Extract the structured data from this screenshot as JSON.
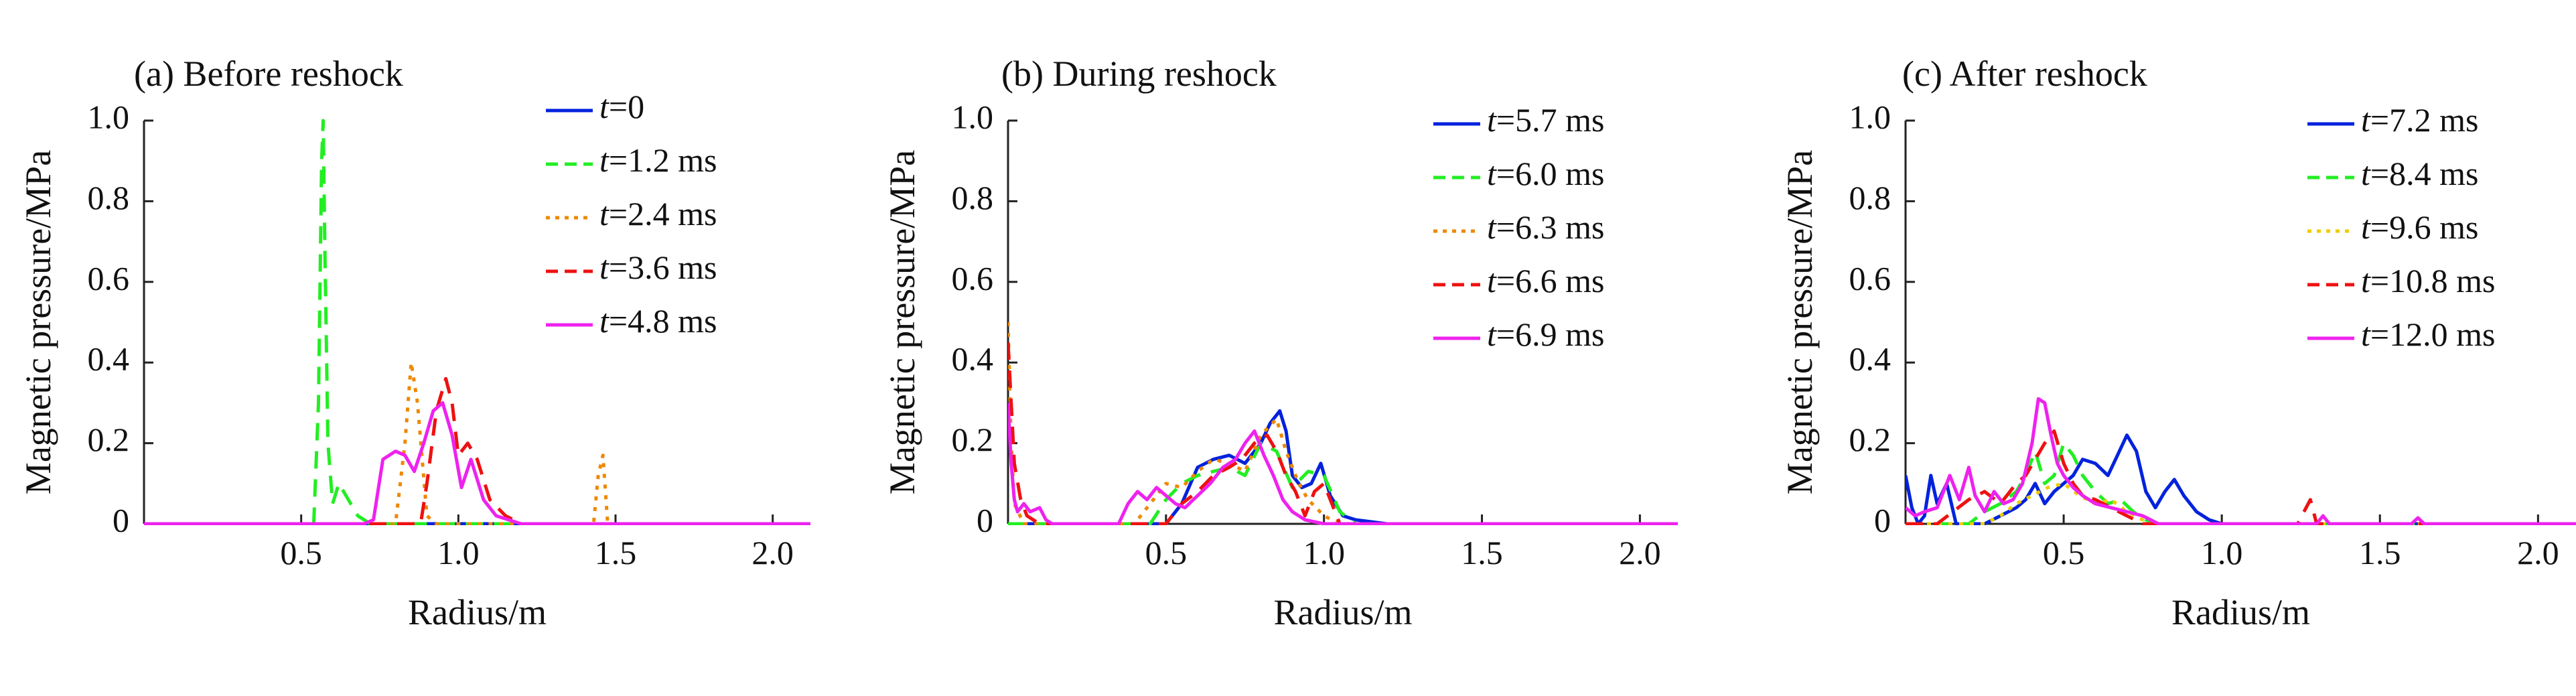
{
  "chart_data": [
    {
      "type": "line",
      "title": "(a) Before reshock",
      "xlabel": "Radius/m",
      "ylabel": "Magnetic pressure/MPa",
      "xlim": [
        0,
        2.12
      ],
      "ylim": [
        0,
        1.0
      ],
      "xticks": [
        "0.5",
        "1.0",
        "1.5",
        "2.0"
      ],
      "yticks": [
        "0",
        "0.2",
        "0.4",
        "0.6",
        "0.8",
        "1.0"
      ],
      "grid": false,
      "legend_position": "top-right",
      "series": [
        {
          "name": "t=0",
          "color": "#0022dd",
          "dash": "solid",
          "x": [
            0.0,
            2.12
          ],
          "y": [
            0.0,
            0.0
          ]
        },
        {
          "name": "t=1.2 ms",
          "color": "#22ee22",
          "dash": "dashed",
          "x": [
            0.0,
            0.54,
            0.555,
            0.565,
            0.57,
            0.575,
            0.585,
            0.6,
            0.62,
            0.65,
            0.68,
            0.72,
            2.12
          ],
          "y": [
            0.0,
            0.0,
            0.3,
            0.9,
            1.0,
            0.7,
            0.2,
            0.05,
            0.1,
            0.06,
            0.02,
            0.0,
            0.0
          ]
        },
        {
          "name": "t=2.4 ms",
          "color": "#ee8800",
          "dash": "dotted",
          "x": [
            0.0,
            0.8,
            0.83,
            0.85,
            0.87,
            0.9,
            0.93,
            0.96,
            1.0,
            1.43,
            1.445,
            1.46,
            1.475,
            2.12
          ],
          "y": [
            0.0,
            0.0,
            0.2,
            0.4,
            0.3,
            0.02,
            0.0,
            0.0,
            0.0,
            0.0,
            0.12,
            0.17,
            0.0,
            0.0
          ]
        },
        {
          "name": "t=3.6 ms",
          "color": "#ee1111",
          "dash": "dashed",
          "x": [
            0.0,
            0.88,
            0.9,
            0.93,
            0.96,
            0.98,
            1.0,
            1.03,
            1.06,
            1.1,
            1.15,
            1.2,
            2.12
          ],
          "y": [
            0.0,
            0.0,
            0.1,
            0.28,
            0.36,
            0.3,
            0.17,
            0.2,
            0.16,
            0.06,
            0.02,
            0.0,
            0.0
          ]
        },
        {
          "name": "t=4.8 ms",
          "color": "#ee22ee",
          "dash": "solid",
          "x": [
            0.0,
            0.7,
            0.73,
            0.76,
            0.8,
            0.83,
            0.86,
            0.89,
            0.92,
            0.95,
            0.98,
            1.01,
            1.04,
            1.08,
            1.12,
            1.2,
            2.12
          ],
          "y": [
            0.0,
            0.0,
            0.01,
            0.16,
            0.18,
            0.17,
            0.13,
            0.2,
            0.28,
            0.3,
            0.22,
            0.09,
            0.16,
            0.06,
            0.02,
            0.0,
            0.0
          ]
        }
      ]
    },
    {
      "type": "line",
      "title": "(b) During reshock",
      "xlabel": "Radius/m",
      "ylabel": "Magnetic pressure/MPa",
      "xlim": [
        0,
        2.12
      ],
      "ylim": [
        0,
        1.0
      ],
      "xticks": [
        "0.5",
        "1.0",
        "1.5",
        "2.0"
      ],
      "yticks": [
        "0",
        "0.2",
        "0.4",
        "0.6",
        "0.8",
        "1.0"
      ],
      "grid": false,
      "legend_position": "top-right",
      "series": [
        {
          "name": "t=5.7 ms",
          "color": "#0022dd",
          "dash": "solid",
          "x": [
            0.0,
            0.5,
            0.55,
            0.6,
            0.65,
            0.7,
            0.75,
            0.8,
            0.83,
            0.86,
            0.88,
            0.9,
            0.93,
            0.96,
            0.99,
            1.02,
            1.06,
            1.1,
            1.2,
            2.12
          ],
          "y": [
            0.0,
            0.0,
            0.05,
            0.14,
            0.16,
            0.17,
            0.15,
            0.2,
            0.25,
            0.28,
            0.23,
            0.12,
            0.09,
            0.1,
            0.15,
            0.07,
            0.02,
            0.01,
            0.0,
            0.0
          ]
        },
        {
          "name": "t=6.0 ms",
          "color": "#22ee22",
          "dash": "dashed",
          "x": [
            0.0,
            0.45,
            0.5,
            0.55,
            0.6,
            0.65,
            0.7,
            0.75,
            0.8,
            0.85,
            0.9,
            0.95,
            1.0,
            1.05,
            1.1,
            2.12
          ],
          "y": [
            0.0,
            0.0,
            0.06,
            0.1,
            0.12,
            0.13,
            0.14,
            0.12,
            0.2,
            0.18,
            0.09,
            0.13,
            0.12,
            0.03,
            0.0,
            0.0
          ]
        },
        {
          "name": "t=6.3 ms",
          "color": "#ee8800",
          "dash": "dotted",
          "x": [
            0.0,
            0.01,
            0.02,
            0.05,
            0.4,
            0.45,
            0.5,
            0.55,
            0.6,
            0.65,
            0.7,
            0.75,
            0.8,
            0.85,
            0.88,
            0.92,
            0.95,
            1.0,
            1.05,
            2.12
          ],
          "y": [
            0.5,
            0.2,
            0.05,
            0.0,
            0.0,
            0.05,
            0.1,
            0.09,
            0.13,
            0.16,
            0.15,
            0.13,
            0.22,
            0.26,
            0.18,
            0.1,
            0.06,
            0.02,
            0.0,
            0.0
          ]
        },
        {
          "name": "t=6.6 ms",
          "color": "#ee1111",
          "dash": "dashed",
          "x": [
            0.0,
            0.01,
            0.02,
            0.04,
            0.06,
            0.1,
            0.5,
            0.55,
            0.6,
            0.65,
            0.7,
            0.74,
            0.78,
            0.82,
            0.85,
            0.88,
            0.91,
            0.94,
            0.97,
            1.0,
            1.05,
            2.12
          ],
          "y": [
            0.45,
            0.3,
            0.15,
            0.06,
            0.02,
            0.0,
            0.0,
            0.05,
            0.08,
            0.12,
            0.14,
            0.16,
            0.2,
            0.22,
            0.18,
            0.12,
            0.08,
            0.02,
            0.08,
            0.1,
            0.0,
            0.0
          ]
        },
        {
          "name": "t=6.9 ms",
          "color": "#ee22ee",
          "dash": "solid",
          "x": [
            0.0,
            0.01,
            0.02,
            0.03,
            0.05,
            0.07,
            0.1,
            0.12,
            0.14,
            0.35,
            0.38,
            0.41,
            0.44,
            0.47,
            0.5,
            0.53,
            0.56,
            0.6,
            0.64,
            0.68,
            0.72,
            0.75,
            0.78,
            0.81,
            0.84,
            0.87,
            0.9,
            0.94,
            1.0,
            2.12
          ],
          "y": [
            0.3,
            0.15,
            0.06,
            0.03,
            0.05,
            0.03,
            0.04,
            0.01,
            0.0,
            0.0,
            0.05,
            0.08,
            0.06,
            0.09,
            0.07,
            0.05,
            0.04,
            0.07,
            0.1,
            0.14,
            0.16,
            0.2,
            0.23,
            0.17,
            0.12,
            0.06,
            0.03,
            0.01,
            0.0,
            0.0
          ]
        }
      ]
    },
    {
      "type": "line",
      "title": "(c) After reshock",
      "xlabel": "Radius/m",
      "ylabel": "Magnetic pressure/MPa",
      "xlim": [
        0,
        2.12
      ],
      "ylim": [
        0,
        1.0
      ],
      "xticks": [
        "0.5",
        "1.0",
        "1.5",
        "2.0"
      ],
      "yticks": [
        "0",
        "0.2",
        "0.4",
        "0.6",
        "0.8",
        "1.0"
      ],
      "grid": false,
      "legend_position": "top-right",
      "series": [
        {
          "name": "t=7.2 ms",
          "color": "#0022dd",
          "dash": "solid",
          "x": [
            0.0,
            0.02,
            0.04,
            0.06,
            0.08,
            0.1,
            0.13,
            0.16,
            0.25,
            0.3,
            0.35,
            0.38,
            0.41,
            0.44,
            0.47,
            0.5,
            0.53,
            0.56,
            0.6,
            0.64,
            0.67,
            0.7,
            0.73,
            0.76,
            0.79,
            0.82,
            0.85,
            0.88,
            0.92,
            0.96,
            1.0,
            2.12
          ],
          "y": [
            0.12,
            0.04,
            0.0,
            0.02,
            0.12,
            0.05,
            0.1,
            0.0,
            0.0,
            0.02,
            0.04,
            0.06,
            0.1,
            0.05,
            0.08,
            0.1,
            0.12,
            0.16,
            0.15,
            0.12,
            0.17,
            0.22,
            0.18,
            0.08,
            0.04,
            0.08,
            0.11,
            0.07,
            0.03,
            0.01,
            0.0,
            0.0
          ]
        },
        {
          "name": "t=8.4 ms",
          "color": "#22ee22",
          "dash": "dashed",
          "x": [
            0.0,
            0.2,
            0.25,
            0.3,
            0.35,
            0.38,
            0.41,
            0.44,
            0.47,
            0.5,
            0.53,
            0.56,
            0.6,
            0.64,
            0.68,
            0.72,
            0.76,
            0.8,
            2.12
          ],
          "y": [
            0.0,
            0.0,
            0.03,
            0.05,
            0.08,
            0.12,
            0.18,
            0.1,
            0.12,
            0.2,
            0.17,
            0.12,
            0.08,
            0.05,
            0.06,
            0.03,
            0.01,
            0.0,
            0.0
          ]
        },
        {
          "name": "t=9.6 ms",
          "color": "#eecc00",
          "dash": "dotted",
          "x": [
            0.0,
            0.25,
            0.3,
            0.35,
            0.4,
            0.45,
            0.5,
            0.55,
            0.6,
            0.65,
            0.7,
            0.75,
            0.8,
            2.12
          ],
          "y": [
            0.0,
            0.0,
            0.02,
            0.05,
            0.07,
            0.09,
            0.1,
            0.07,
            0.05,
            0.06,
            0.03,
            0.01,
            0.0,
            0.0
          ]
        },
        {
          "name": "t=10.8 ms",
          "color": "#ee1111",
          "dash": "dashed",
          "x": [
            0.0,
            0.1,
            0.15,
            0.2,
            0.25,
            0.3,
            0.35,
            0.38,
            0.41,
            0.44,
            0.47,
            0.5,
            0.53,
            0.56,
            0.6,
            0.65,
            0.7,
            0.75,
            1.24,
            1.26,
            1.28,
            1.3,
            2.12
          ],
          "y": [
            0.0,
            0.0,
            0.03,
            0.06,
            0.08,
            0.05,
            0.1,
            0.12,
            0.16,
            0.2,
            0.23,
            0.15,
            0.1,
            0.07,
            0.06,
            0.04,
            0.02,
            0.0,
            0.0,
            0.03,
            0.06,
            0.0,
            0.0
          ]
        },
        {
          "name": "t=12.0 ms",
          "color": "#ee22ee",
          "dash": "solid",
          "x": [
            0.0,
            0.03,
            0.06,
            0.1,
            0.14,
            0.17,
            0.2,
            0.22,
            0.25,
            0.28,
            0.31,
            0.34,
            0.37,
            0.4,
            0.42,
            0.44,
            0.46,
            0.48,
            0.5,
            0.53,
            0.56,
            0.6,
            0.65,
            0.7,
            0.75,
            0.8,
            1.3,
            1.32,
            1.34,
            1.6,
            1.62,
            1.64,
            2.12
          ],
          "y": [
            0.04,
            0.02,
            0.03,
            0.04,
            0.12,
            0.06,
            0.14,
            0.07,
            0.03,
            0.08,
            0.05,
            0.06,
            0.1,
            0.2,
            0.31,
            0.3,
            0.22,
            0.15,
            0.12,
            0.09,
            0.07,
            0.05,
            0.04,
            0.03,
            0.02,
            0.0,
            0.0,
            0.02,
            0.0,
            0.0,
            0.015,
            0.0,
            0.0
          ]
        }
      ]
    }
  ]
}
